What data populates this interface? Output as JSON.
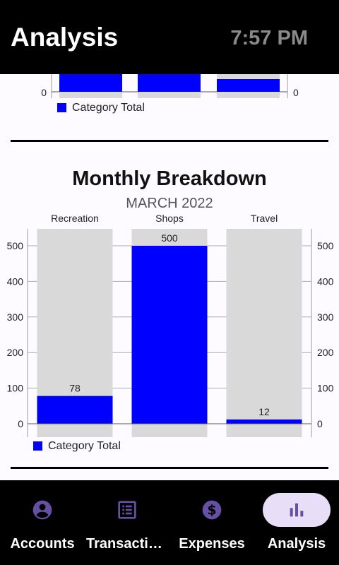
{
  "header": {
    "title": "Analysis",
    "time": "7:57 PM"
  },
  "top_chart": {
    "zero_left": "0",
    "zero_right": "0",
    "legend": "Category Total"
  },
  "monthly": {
    "title": "Monthly Breakdown",
    "subtitle": "MARCH 2022",
    "legend": "Category Total"
  },
  "chart_data": [
    {
      "type": "bar",
      "title": "",
      "note": "upper chart scrolled partially out of view; values not readable",
      "categories": [
        "",
        "",
        ""
      ],
      "series": [
        {
          "name": "Category Total",
          "values": [
            null,
            null,
            null
          ]
        }
      ]
    },
    {
      "type": "bar",
      "title": "Monthly Breakdown",
      "subtitle": "MARCH 2022",
      "categories": [
        "Recreation",
        "Shops",
        "Travel"
      ],
      "values": [
        78,
        500,
        12
      ],
      "value_labels": [
        "78",
        "500",
        "12"
      ],
      "series": [
        {
          "name": "Category Total",
          "values": [
            78,
            500,
            12
          ]
        }
      ],
      "ylim": [
        0,
        550
      ],
      "yticks": [
        "0",
        "100",
        "200",
        "300",
        "400",
        "500"
      ],
      "grid": true,
      "legend_position": "bottom-left",
      "bar_color": "#0000ff",
      "track_color": "#d9d9d9"
    }
  ],
  "nav": [
    {
      "label": "Accounts",
      "icon": "account-circle-icon",
      "active": false
    },
    {
      "label": "Transactions",
      "icon": "list-icon",
      "active": false
    },
    {
      "label": "Expenses",
      "icon": "dollar-icon",
      "active": false
    },
    {
      "label": "Analysis",
      "icon": "bar-chart-icon",
      "active": true
    }
  ],
  "colors": {
    "accent": "#6750a4",
    "bar": "#0000ff",
    "active_pill": "#e8def8"
  }
}
